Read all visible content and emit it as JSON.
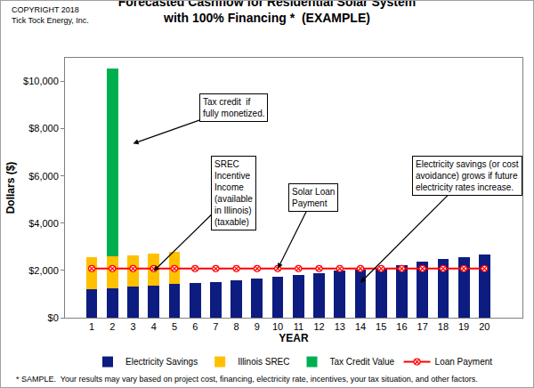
{
  "chart_data": {
    "type": "bar",
    "title": "Forecasted Cashflow for Residential Solar System",
    "subtitle": "with 100% Financing *  (EXAMPLE)",
    "copyright": [
      "COPYRIGHT 2018",
      "Tick Tock Energy, Inc."
    ],
    "footnote": "* SAMPLE.  Your results may vary based on project cost, financing, electricity rate, incentives, your tax situation, and other factors.",
    "xlabel": "YEAR",
    "ylabel": "Dollars ($)",
    "categories": [
      "1",
      "2",
      "3",
      "4",
      "5",
      "6",
      "7",
      "8",
      "9",
      "10",
      "11",
      "12",
      "13",
      "14",
      "15",
      "16",
      "17",
      "18",
      "19",
      "20"
    ],
    "series": [
      {
        "name": "Electricity Savings",
        "type": "bar",
        "color": "#0c1c80",
        "values": [
          1200,
          1250,
          1300,
          1350,
          1420,
          1470,
          1520,
          1580,
          1660,
          1730,
          1820,
          1900,
          1980,
          2050,
          2120,
          2220,
          2370,
          2470,
          2560,
          2680
        ]
      },
      {
        "name": "Illinois SREC",
        "type": "bar",
        "color": "#ffc000",
        "values": [
          1350,
          1350,
          1350,
          1380,
          1380,
          null,
          null,
          null,
          null,
          null,
          null,
          null,
          null,
          null,
          null,
          null,
          null,
          null,
          null,
          null
        ]
      },
      {
        "name": "Tax Credit Value",
        "type": "bar",
        "color": "#00b050",
        "values": [
          null,
          7950,
          null,
          null,
          null,
          null,
          null,
          null,
          null,
          null,
          null,
          null,
          null,
          null,
          null,
          null,
          null,
          null,
          null,
          null
        ]
      },
      {
        "name": "Loan Payment",
        "type": "line",
        "color": "#ff0000",
        "marker": "circle-x",
        "values": [
          2080,
          2080,
          2080,
          2080,
          2080,
          2080,
          2080,
          2080,
          2080,
          2080,
          2080,
          2080,
          2080,
          2080,
          2080,
          2080,
          2080,
          2080,
          2080,
          2080
        ]
      }
    ],
    "ylim": [
      0,
      11000
    ],
    "yticks": [
      {
        "value": 0,
        "label": "$0"
      },
      {
        "value": 2000,
        "label": "$2,000"
      },
      {
        "value": 4000,
        "label": "$4,000"
      },
      {
        "value": 6000,
        "label": "$6,000"
      },
      {
        "value": 8000,
        "label": "$8,000"
      },
      {
        "value": 10000,
        "label": "$10,000"
      }
    ],
    "stacked": true,
    "grid": false,
    "legend": "bottom",
    "annotations": [
      {
        "lines": [
          "Tax credit  if",
          "fully monetized."
        ]
      },
      {
        "lines": [
          "SREC",
          "Incentive",
          "Income",
          "(available",
          "in Illinois)",
          "(taxable)"
        ]
      },
      {
        "lines": [
          "Solar Loan",
          "Payment"
        ]
      },
      {
        "lines": [
          "Electricity savings (or cost",
          "avoidance) grows if future",
          "electricity rates increase."
        ]
      }
    ]
  }
}
